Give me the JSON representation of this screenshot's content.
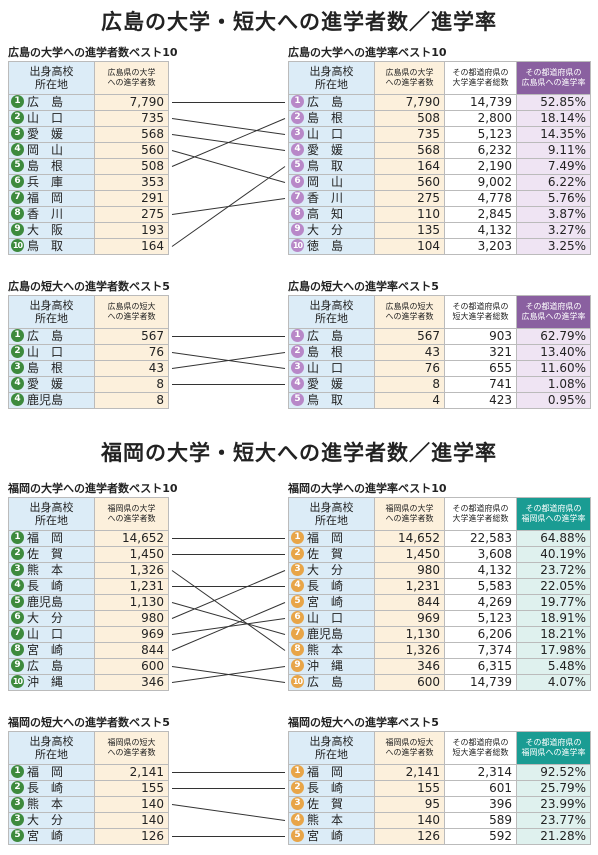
{
  "hiroshima": {
    "title": "広島の大学・短大への進学者数／進学率",
    "univ_count": {
      "title": "広島の大学への進学者数ベスト10",
      "headers": {
        "pref": "出身高校\n所在地",
        "num": "広島県の大学\nへの進学者数"
      },
      "rows": [
        {
          "rank": "1",
          "pref": "広　島",
          "num": "7,790"
        },
        {
          "rank": "2",
          "pref": "山　口",
          "num": "735"
        },
        {
          "rank": "3",
          "pref": "愛　媛",
          "num": "568"
        },
        {
          "rank": "4",
          "pref": "岡　山",
          "num": "560"
        },
        {
          "rank": "5",
          "pref": "島　根",
          "num": "508"
        },
        {
          "rank": "6",
          "pref": "兵　庫",
          "num": "353"
        },
        {
          "rank": "7",
          "pref": "福　岡",
          "num": "291"
        },
        {
          "rank": "8",
          "pref": "香　川",
          "num": "275"
        },
        {
          "rank": "9",
          "pref": "大　阪",
          "num": "193"
        },
        {
          "rank": "10",
          "pref": "鳥　取",
          "num": "164"
        }
      ]
    },
    "univ_rate": {
      "title": "広島の大学への進学率ベスト10",
      "headers": {
        "pref": "出身高校\n所在地",
        "num": "広島県の大学\nへの進学者数",
        "tot": "その都道府県の\n大学進学者総数",
        "rate": "その都道府県の\n広島県への進学率"
      },
      "rows": [
        {
          "rank": "1",
          "pref": "広　島",
          "num": "7,790",
          "tot": "14,739",
          "rate": "52.85%"
        },
        {
          "rank": "2",
          "pref": "島　根",
          "num": "508",
          "tot": "2,800",
          "rate": "18.14%"
        },
        {
          "rank": "3",
          "pref": "山　口",
          "num": "735",
          "tot": "5,123",
          "rate": "14.35%"
        },
        {
          "rank": "4",
          "pref": "愛　媛",
          "num": "568",
          "tot": "6,232",
          "rate": "9.11%"
        },
        {
          "rank": "5",
          "pref": "鳥　取",
          "num": "164",
          "tot": "2,190",
          "rate": "7.49%"
        },
        {
          "rank": "6",
          "pref": "岡　山",
          "num": "560",
          "tot": "9,002",
          "rate": "6.22%"
        },
        {
          "rank": "7",
          "pref": "香　川",
          "num": "275",
          "tot": "4,778",
          "rate": "5.76%"
        },
        {
          "rank": "8",
          "pref": "高　知",
          "num": "110",
          "tot": "2,845",
          "rate": "3.87%"
        },
        {
          "rank": "9",
          "pref": "大　分",
          "num": "135",
          "tot": "4,132",
          "rate": "3.27%"
        },
        {
          "rank": "10",
          "pref": "徳　島",
          "num": "104",
          "tot": "3,203",
          "rate": "3.25%"
        }
      ]
    },
    "jc_count": {
      "title": "広島の短大への進学者数ベスト5",
      "headers": {
        "pref": "出身高校\n所在地",
        "num": "広島県の短大\nへの進学者数"
      },
      "rows": [
        {
          "rank": "1",
          "pref": "広　島",
          "num": "567"
        },
        {
          "rank": "2",
          "pref": "山　口",
          "num": "76"
        },
        {
          "rank": "3",
          "pref": "島　根",
          "num": "43"
        },
        {
          "rank": "4",
          "pref": "愛　媛",
          "num": "8"
        },
        {
          "rank": "4",
          "pref": "鹿児島",
          "num": "8"
        }
      ]
    },
    "jc_rate": {
      "title": "広島の短大への進学率ベスト5",
      "headers": {
        "pref": "出身高校\n所在地",
        "num": "広島県の短大\nへの進学者数",
        "tot": "その都道府県の\n短大進学者総数",
        "rate": "その都道府県の\n広島県への進学率"
      },
      "rows": [
        {
          "rank": "1",
          "pref": "広　島",
          "num": "567",
          "tot": "903",
          "rate": "62.79%"
        },
        {
          "rank": "2",
          "pref": "島　根",
          "num": "43",
          "tot": "321",
          "rate": "13.40%"
        },
        {
          "rank": "3",
          "pref": "山　口",
          "num": "76",
          "tot": "655",
          "rate": "11.60%"
        },
        {
          "rank": "4",
          "pref": "愛　媛",
          "num": "8",
          "tot": "741",
          "rate": "1.08%"
        },
        {
          "rank": "5",
          "pref": "鳥　取",
          "num": "4",
          "tot": "423",
          "rate": "0.95%"
        }
      ]
    }
  },
  "fukuoka": {
    "title": "福岡の大学・短大への進学者数／進学率",
    "univ_count": {
      "title": "福岡の大学への進学者数ベスト10",
      "headers": {
        "pref": "出身高校\n所在地",
        "num": "福岡県の大学\nへの進学者数"
      },
      "rows": [
        {
          "rank": "1",
          "pref": "福　岡",
          "num": "14,652"
        },
        {
          "rank": "2",
          "pref": "佐　賀",
          "num": "1,450"
        },
        {
          "rank": "3",
          "pref": "熊　本",
          "num": "1,326"
        },
        {
          "rank": "4",
          "pref": "長　崎",
          "num": "1,231"
        },
        {
          "rank": "5",
          "pref": "鹿児島",
          "num": "1,130"
        },
        {
          "rank": "6",
          "pref": "大　分",
          "num": "980"
        },
        {
          "rank": "7",
          "pref": "山　口",
          "num": "969"
        },
        {
          "rank": "8",
          "pref": "宮　崎",
          "num": "844"
        },
        {
          "rank": "9",
          "pref": "広　島",
          "num": "600"
        },
        {
          "rank": "10",
          "pref": "沖　縄",
          "num": "346"
        }
      ]
    },
    "univ_rate": {
      "title": "福岡の大学への進学率ベスト10",
      "headers": {
        "pref": "出身高校\n所在地",
        "num": "福岡県の大学\nへの進学者数",
        "tot": "その都道府県の\n大学進学者総数",
        "rate": "その都道府県の\n福岡県への進学率"
      },
      "rows": [
        {
          "rank": "1",
          "pref": "福　岡",
          "num": "14,652",
          "tot": "22,583",
          "rate": "64.88%"
        },
        {
          "rank": "2",
          "pref": "佐　賀",
          "num": "1,450",
          "tot": "3,608",
          "rate": "40.19%"
        },
        {
          "rank": "3",
          "pref": "大　分",
          "num": "980",
          "tot": "4,132",
          "rate": "23.72%"
        },
        {
          "rank": "4",
          "pref": "長　崎",
          "num": "1,231",
          "tot": "5,583",
          "rate": "22.05%"
        },
        {
          "rank": "5",
          "pref": "宮　崎",
          "num": "844",
          "tot": "4,269",
          "rate": "19.77%"
        },
        {
          "rank": "6",
          "pref": "山　口",
          "num": "969",
          "tot": "5,123",
          "rate": "18.91%"
        },
        {
          "rank": "7",
          "pref": "鹿児島",
          "num": "1,130",
          "tot": "6,206",
          "rate": "18.21%"
        },
        {
          "rank": "8",
          "pref": "熊　本",
          "num": "1,326",
          "tot": "7,374",
          "rate": "17.98%"
        },
        {
          "rank": "9",
          "pref": "沖　縄",
          "num": "346",
          "tot": "6,315",
          "rate": "5.48%"
        },
        {
          "rank": "10",
          "pref": "広　島",
          "num": "600",
          "tot": "14,739",
          "rate": "4.07%"
        }
      ]
    },
    "jc_count": {
      "title": "福岡の短大への進学者数ベスト5",
      "headers": {
        "pref": "出身高校\n所在地",
        "num": "福岡県の短大\nへの進学者数"
      },
      "rows": [
        {
          "rank": "1",
          "pref": "福　岡",
          "num": "2,141"
        },
        {
          "rank": "2",
          "pref": "長　崎",
          "num": "155"
        },
        {
          "rank": "3",
          "pref": "熊　本",
          "num": "140"
        },
        {
          "rank": "3",
          "pref": "大　分",
          "num": "140"
        },
        {
          "rank": "5",
          "pref": "宮　崎",
          "num": "126"
        }
      ]
    },
    "jc_rate": {
      "title": "福岡の短大への進学率ベスト5",
      "headers": {
        "pref": "出身高校\n所在地",
        "num": "福岡県の短大\nへの進学者数",
        "tot": "その都道府県の\n短大進学者総数",
        "rate": "その都道府県の\n福岡県への進学率"
      },
      "rows": [
        {
          "rank": "1",
          "pref": "福　岡",
          "num": "2,141",
          "tot": "2,314",
          "rate": "92.52%"
        },
        {
          "rank": "2",
          "pref": "長　崎",
          "num": "155",
          "tot": "601",
          "rate": "25.79%"
        },
        {
          "rank": "3",
          "pref": "佐　賀",
          "num": "95",
          "tot": "396",
          "rate": "23.99%"
        },
        {
          "rank": "4",
          "pref": "熊　本",
          "num": "140",
          "tot": "589",
          "rate": "23.77%"
        },
        {
          "rank": "5",
          "pref": "宮　崎",
          "num": "126",
          "tot": "592",
          "rate": "21.28%"
        }
      ]
    }
  },
  "colors": {
    "rank_count": "#3d8a3d",
    "rank_rate_hiroshima": "#b888c8",
    "rank_rate_fukuoka": "#e8a548",
    "header_rate_hiroshima": "#8a60a0",
    "header_rate_fukuoka": "#1a9c93"
  }
}
